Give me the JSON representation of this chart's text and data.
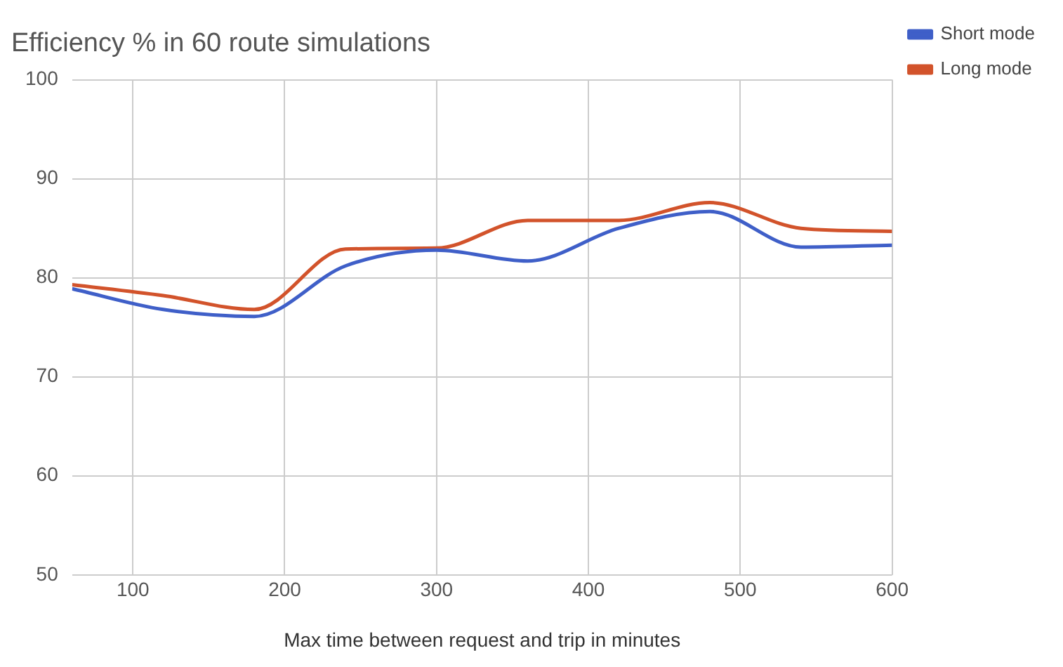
{
  "chart_data": {
    "type": "line",
    "title": "Efficiency % in 60 route simulations",
    "xlabel": "Max time between request and trip in minutes",
    "x": [
      60,
      120,
      180,
      240,
      300,
      360,
      420,
      480,
      540,
      600
    ],
    "series": [
      {
        "name": "Short mode",
        "color": "#3f5fc8",
        "values": [
          78.9,
          76.8,
          76.1,
          81.2,
          82.8,
          81.7,
          85.0,
          86.7,
          83.1,
          83.3
        ]
      },
      {
        "name": "Long mode",
        "color": "#d2532b",
        "values": [
          79.3,
          78.2,
          76.8,
          82.9,
          83.0,
          85.8,
          85.8,
          87.6,
          85.0,
          84.7
        ]
      }
    ],
    "xlim": [
      60,
      600
    ],
    "xticks": [
      100,
      200,
      300,
      400,
      500,
      600
    ],
    "ylim": [
      50,
      100
    ],
    "yticks": [
      50,
      60,
      70,
      80,
      90,
      100
    ],
    "grid": true,
    "legend": "top right",
    "marker": "none",
    "line_style": "solid"
  }
}
